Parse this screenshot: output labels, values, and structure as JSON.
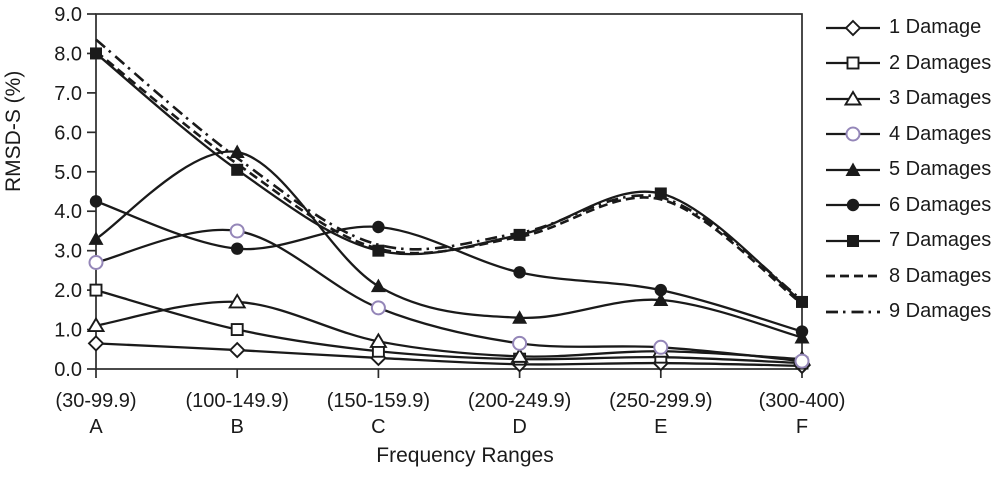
{
  "chart_data": {
    "type": "line",
    "title": "",
    "xlabel": "Frequency Ranges",
    "ylabel": "RMSD-S (%)",
    "ylim": [
      0,
      9
    ],
    "ytick_step": 1.0,
    "ytick_labels": [
      "0.0",
      "1.0",
      "2.0",
      "3.0",
      "4.0",
      "5.0",
      "6.0",
      "7.0",
      "8.0",
      "9.0"
    ],
    "grid": false,
    "legend_position": "right",
    "categories": [
      "A",
      "B",
      "C",
      "D",
      "E",
      "F"
    ],
    "category_ranges": [
      "(30-99.9)",
      "(100-149.9)",
      "(150-159.9)",
      "(200-249.9)",
      "(250-299.9)",
      "(300-400)"
    ],
    "series": [
      {
        "name": "1 Damage",
        "marker": "diamond-open",
        "line": "solid",
        "values": [
          0.65,
          0.48,
          0.28,
          0.12,
          0.15,
          0.08
        ]
      },
      {
        "name": "2 Damages",
        "marker": "square-open",
        "line": "solid",
        "values": [
          2.0,
          1.0,
          0.45,
          0.25,
          0.3,
          0.15
        ]
      },
      {
        "name": "3 Damages",
        "marker": "triangle-open",
        "line": "solid",
        "values": [
          1.1,
          1.7,
          0.7,
          0.32,
          0.45,
          0.25
        ]
      },
      {
        "name": "4 Damages",
        "marker": "circle-open",
        "line": "solid",
        "values": [
          2.7,
          3.5,
          1.55,
          0.65,
          0.55,
          0.2
        ]
      },
      {
        "name": "5 Damages",
        "marker": "triangle-filled",
        "line": "solid",
        "values": [
          3.3,
          5.5,
          2.1,
          1.3,
          1.75,
          0.8
        ]
      },
      {
        "name": "6 Damages",
        "marker": "circle-filled",
        "line": "solid",
        "values": [
          4.25,
          3.05,
          3.6,
          2.45,
          2.0,
          0.95
        ]
      },
      {
        "name": "7 Damages",
        "marker": "square-filled",
        "line": "solid",
        "values": [
          8.0,
          5.05,
          3.0,
          3.4,
          4.45,
          1.7
        ]
      },
      {
        "name": "8 Damages",
        "marker": "none",
        "line": "dashed",
        "values": [
          8.05,
          5.2,
          3.05,
          3.35,
          4.3,
          1.65
        ]
      },
      {
        "name": "9 Damages",
        "marker": "none",
        "line": "dashdot",
        "values": [
          8.35,
          5.35,
          3.15,
          3.45,
          4.35,
          1.75
        ]
      }
    ]
  },
  "colors": {
    "line": "#1a1a1a",
    "axis": "#2b2b2b",
    "text": "#1a1a1a",
    "open_circle_stroke": "#9486b8",
    "marker_fill_open": "#ffffff",
    "background": "#ffffff"
  }
}
